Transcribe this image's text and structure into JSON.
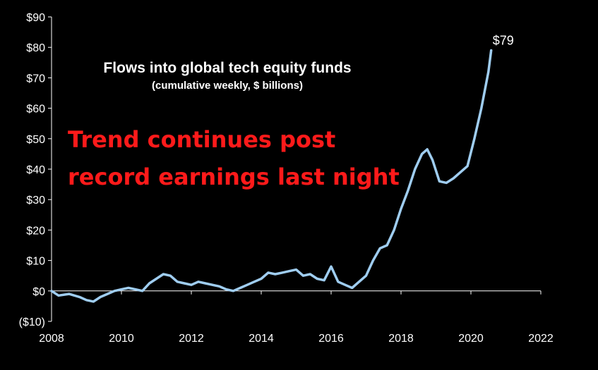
{
  "chart_data": {
    "type": "line",
    "title": "Flows into global tech equity funds",
    "subtitle": "(cumulative weekly, $ billions)",
    "annotation_lines": [
      "Trend continues post",
      "record earnings last night"
    ],
    "end_label": "$79",
    "xlim": [
      2008,
      2022
    ],
    "ylim": [
      -10,
      90
    ],
    "x_ticks": [
      2008,
      2010,
      2012,
      2014,
      2016,
      2018,
      2020,
      2022
    ],
    "x_tick_labels": [
      "2008",
      "2010",
      "2012",
      "2014",
      "2016",
      "2018",
      "2020",
      "2022"
    ],
    "y_ticks": [
      -10,
      0,
      10,
      20,
      30,
      40,
      50,
      60,
      70,
      80,
      90
    ],
    "y_tick_labels": [
      "($10)",
      "$0",
      "$10",
      "$20",
      "$30",
      "$40",
      "$50",
      "$60",
      "$70",
      "$80",
      "$90"
    ],
    "grid": false,
    "legend": "none",
    "series": [
      {
        "color": "#9fcdf0",
        "x": [
          2008.0,
          2008.2,
          2008.5,
          2008.8,
          2009.0,
          2009.2,
          2009.4,
          2009.6,
          2009.8,
          2010.0,
          2010.2,
          2010.4,
          2010.6,
          2010.8,
          2011.0,
          2011.2,
          2011.4,
          2011.6,
          2011.8,
          2012.0,
          2012.2,
          2012.4,
          2012.6,
          2012.8,
          2013.0,
          2013.2,
          2013.4,
          2013.6,
          2013.8,
          2014.0,
          2014.2,
          2014.4,
          2014.6,
          2014.8,
          2015.0,
          2015.2,
          2015.4,
          2015.6,
          2015.8,
          2016.0,
          2016.2,
          2016.4,
          2016.6,
          2016.8,
          2017.0,
          2017.2,
          2017.4,
          2017.6,
          2017.8,
          2018.0,
          2018.2,
          2018.4,
          2018.6,
          2018.75,
          2018.9,
          2019.1,
          2019.3,
          2019.5,
          2019.7,
          2019.9,
          2020.1,
          2020.3,
          2020.5,
          2020.58
        ],
        "y": [
          0.0,
          -1.5,
          -1.0,
          -2.0,
          -3.0,
          -3.5,
          -2.0,
          -1.0,
          0.0,
          0.5,
          1.0,
          0.5,
          0.0,
          2.5,
          4.0,
          5.5,
          5.0,
          3.0,
          2.5,
          2.0,
          3.0,
          2.5,
          2.0,
          1.5,
          0.5,
          0.0,
          1.0,
          2.0,
          3.0,
          4.0,
          6.0,
          5.5,
          6.0,
          6.5,
          7.0,
          5.0,
          5.5,
          4.0,
          3.5,
          8.0,
          3.0,
          2.0,
          1.0,
          3.0,
          5.0,
          10.0,
          14.0,
          15.0,
          20.0,
          27.0,
          33.0,
          40.0,
          45.0,
          46.5,
          43.0,
          36.0,
          35.5,
          37.0,
          39.0,
          41.0,
          50.0,
          60.0,
          72.0,
          79.0
        ]
      }
    ]
  }
}
